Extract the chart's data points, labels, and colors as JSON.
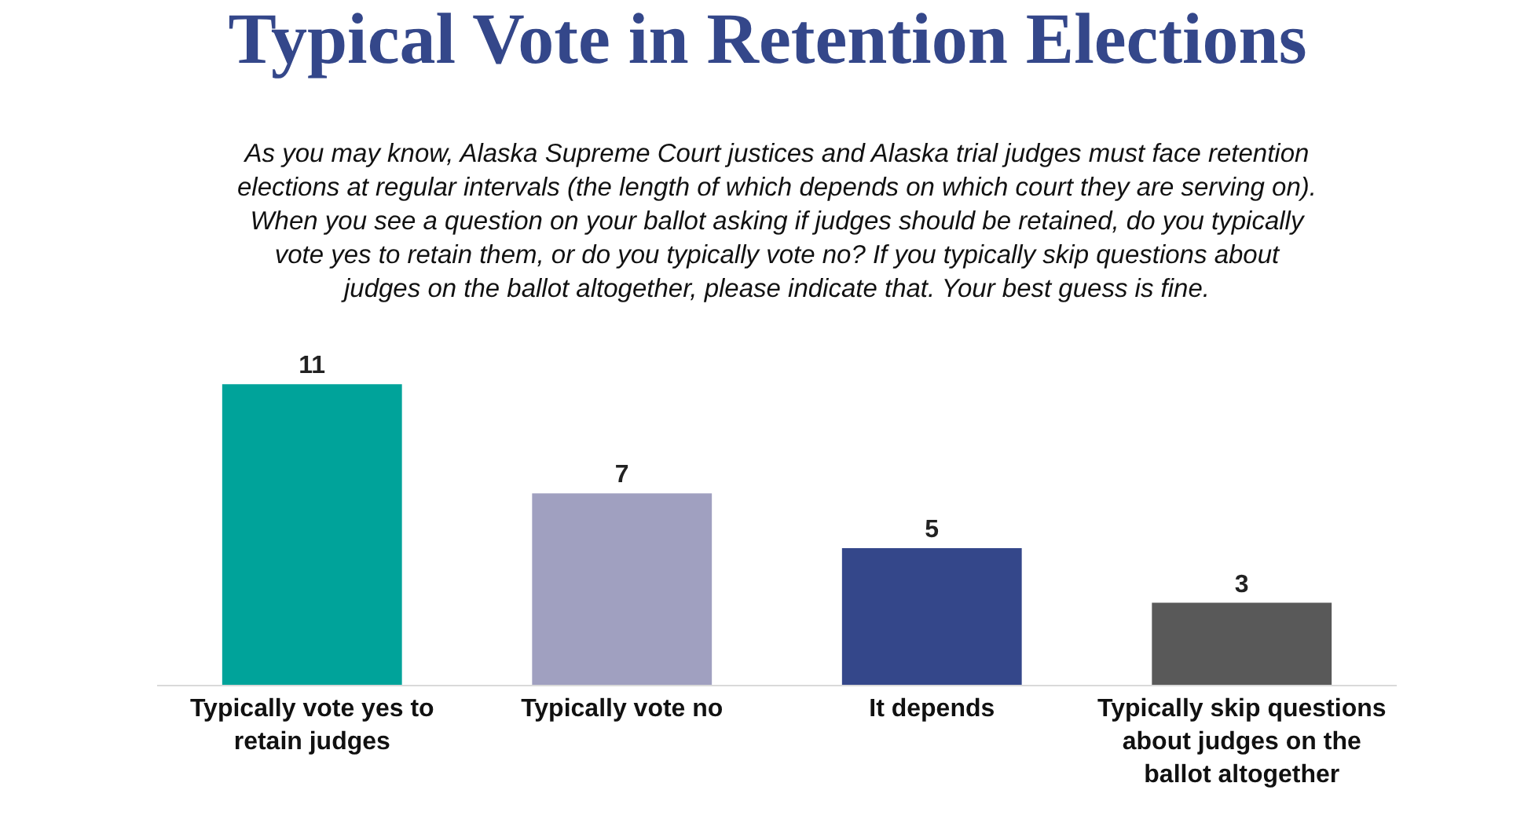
{
  "chart_data": {
    "type": "bar",
    "title": "Typical Vote in Retention Elections",
    "subtitle": "As you may know, Alaska Supreme Court justices and Alaska trial judges must face retention elections at regular intervals (the length of which depends on which court they are serving on). When you see a question on your ballot asking if judges should be retained, do you typically vote yes to retain them, or do you typically vote no? If you typically skip questions about judges on the ballot altogether, please indicate that. Your best guess is fine.",
    "categories": [
      "Typically vote yes to retain judges",
      "Typically vote no",
      "It depends",
      "Typically skip questions about judges on the ballot altogether"
    ],
    "values": [
      11,
      7,
      5,
      3
    ],
    "colors": [
      "#00a39a",
      "#a0a0c0",
      "#34478a",
      "#595959"
    ],
    "data_labels": true
  }
}
